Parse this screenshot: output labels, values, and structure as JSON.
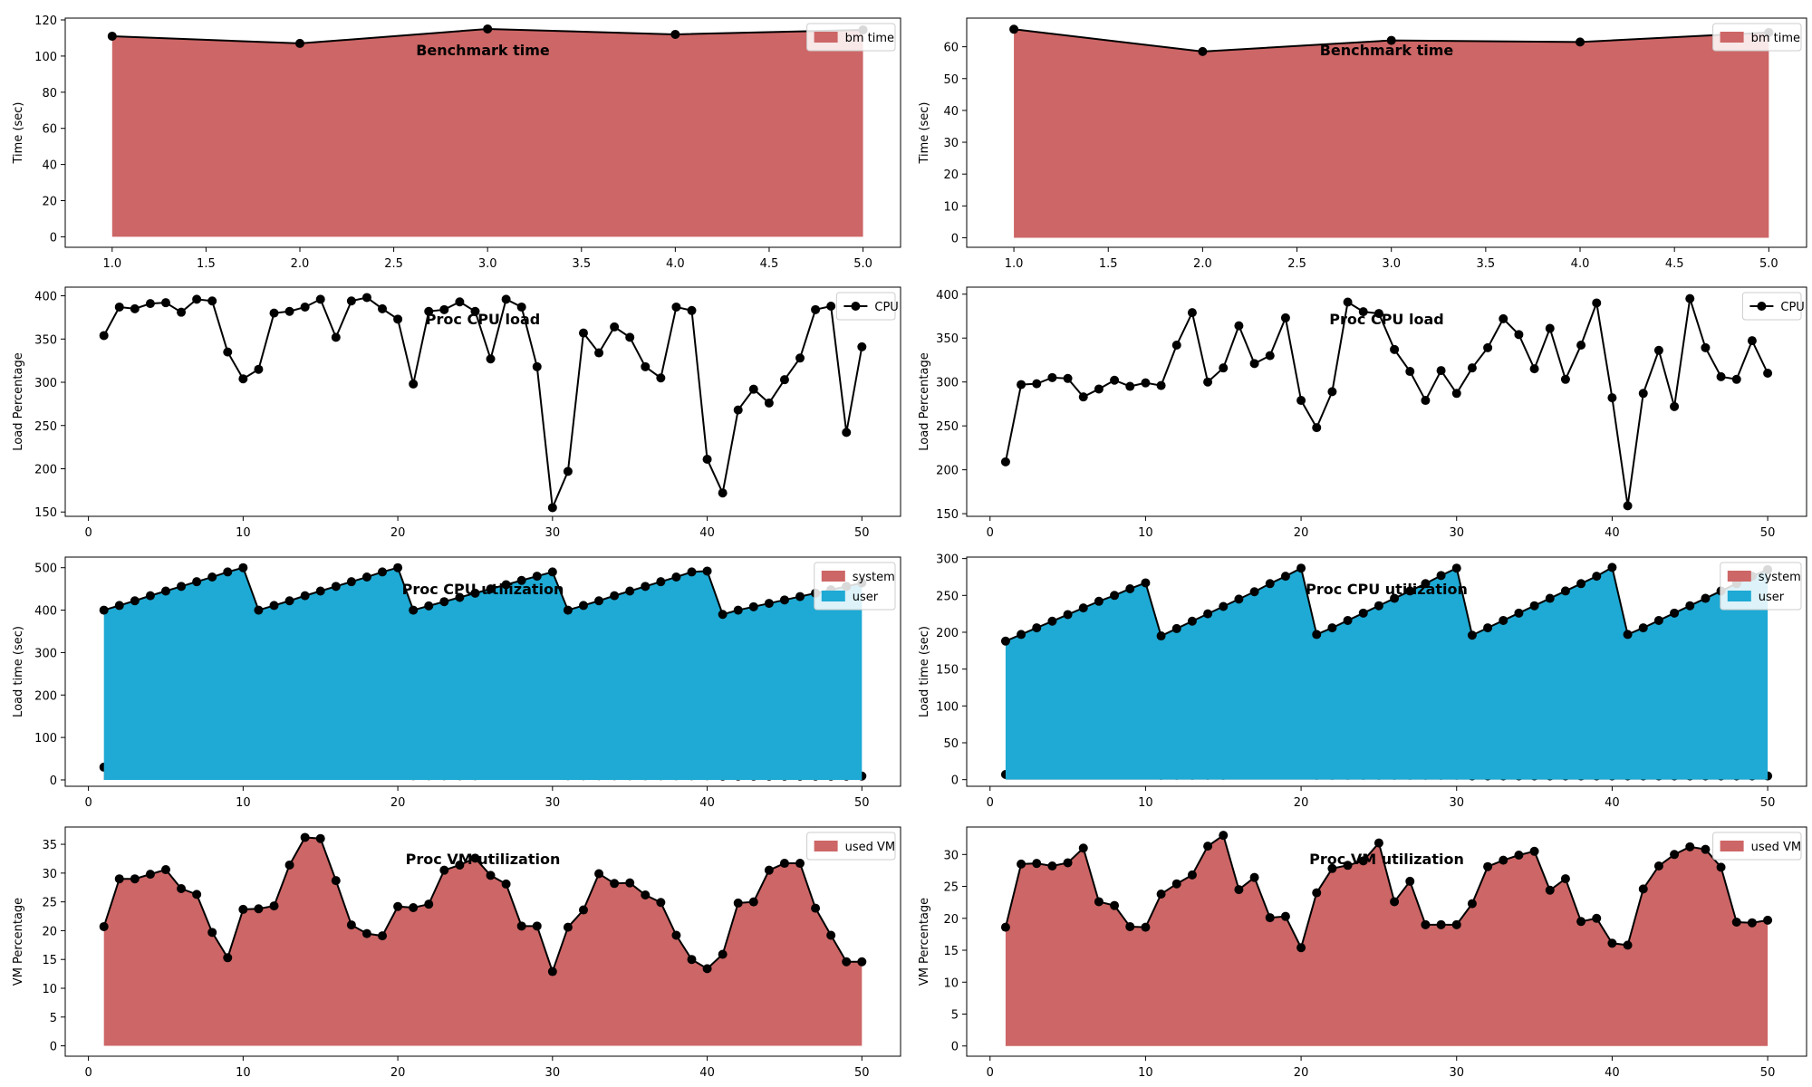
{
  "colors": {
    "area_red": "#cd6666",
    "area_blue": "#1eaad4",
    "line": "#000000",
    "axes": "#000000"
  },
  "chart_data": [
    {
      "type": "area",
      "title": "Benchmark time",
      "xlabel": "",
      "ylabel": "Time (sec)",
      "xlim": [
        0.75,
        5.2
      ],
      "ylim": [
        -5.8,
        121
      ],
      "xticks": [
        1.0,
        1.5,
        2.0,
        2.5,
        3.0,
        3.5,
        4.0,
        4.5,
        5.0
      ],
      "xticklabels": [
        "1.0",
        "1.5",
        "2.0",
        "2.5",
        "3.0",
        "3.5",
        "4.0",
        "4.5",
        "5.0"
      ],
      "yticks": [
        0,
        20,
        40,
        60,
        80,
        100,
        120
      ],
      "legend_position": "top-right",
      "grid": false,
      "x": [
        1,
        2,
        3,
        4,
        5
      ],
      "series": [
        {
          "name": "bm time",
          "style": "area",
          "color": "#cd6666",
          "values": [
            111,
            107,
            115,
            112,
            114.5
          ]
        }
      ]
    },
    {
      "type": "area",
      "title": "Benchmark time",
      "xlabel": "",
      "ylabel": "Time (sec)",
      "xlim": [
        0.75,
        5.2
      ],
      "ylim": [
        -3,
        69
      ],
      "xticks": [
        1.0,
        1.5,
        2.0,
        2.5,
        3.0,
        3.5,
        4.0,
        4.5,
        5.0
      ],
      "xticklabels": [
        "1.0",
        "1.5",
        "2.0",
        "2.5",
        "3.0",
        "3.5",
        "4.0",
        "4.5",
        "5.0"
      ],
      "yticks": [
        0,
        10,
        20,
        30,
        40,
        50,
        60
      ],
      "legend_position": "top-right",
      "grid": false,
      "x": [
        1,
        2,
        3,
        4,
        5
      ],
      "series": [
        {
          "name": "bm time",
          "style": "area",
          "color": "#cd6666",
          "values": [
            65.5,
            58.5,
            62,
            61.5,
            64.5
          ]
        }
      ]
    },
    {
      "type": "line",
      "title": "Proc CPU load",
      "xlabel": "",
      "ylabel": "Load Percentage",
      "xlim": [
        -1.5,
        52.5
      ],
      "ylim": [
        145,
        410
      ],
      "xticks": [
        0,
        10,
        20,
        30,
        40,
        50
      ],
      "xticklabels": [
        "0",
        "10",
        "20",
        "30",
        "40",
        "50"
      ],
      "yticks": [
        150,
        200,
        250,
        300,
        350,
        400
      ],
      "legend_position": "top-right",
      "grid": false,
      "x": [
        1,
        2,
        3,
        4,
        5,
        6,
        7,
        8,
        9,
        10,
        11,
        12,
        13,
        14,
        15,
        16,
        17,
        18,
        19,
        20,
        21,
        22,
        23,
        24,
        25,
        26,
        27,
        28,
        29,
        30,
        31,
        32,
        33,
        34,
        35,
        36,
        37,
        38,
        39,
        40,
        41,
        42,
        43,
        44,
        45,
        46,
        47,
        48,
        49,
        50
      ],
      "series": [
        {
          "name": "CPU",
          "style": "line",
          "color": "#000000",
          "values": [
            354,
            387,
            385,
            391,
            392,
            381,
            396,
            394,
            335,
            304,
            315,
            380,
            382,
            387,
            396,
            352,
            394,
            398,
            385,
            373,
            298,
            382,
            384,
            393,
            382,
            327,
            396,
            387,
            318,
            155,
            197,
            357,
            334,
            364,
            352,
            318,
            305,
            387,
            383,
            211,
            172,
            268,
            292,
            276,
            303,
            328,
            384,
            388,
            242,
            341
          ]
        }
      ]
    },
    {
      "type": "line",
      "title": "Proc CPU load",
      "xlabel": "",
      "ylabel": "Load Percentage",
      "xlim": [
        -1.5,
        52.5
      ],
      "ylim": [
        147,
        408
      ],
      "xticks": [
        0,
        10,
        20,
        30,
        40,
        50
      ],
      "xticklabels": [
        "0",
        "10",
        "20",
        "30",
        "40",
        "50"
      ],
      "yticks": [
        150,
        200,
        250,
        300,
        350,
        400
      ],
      "legend_position": "top-right",
      "grid": false,
      "x": [
        1,
        2,
        3,
        4,
        5,
        6,
        7,
        8,
        9,
        10,
        11,
        12,
        13,
        14,
        15,
        16,
        17,
        18,
        19,
        20,
        21,
        22,
        23,
        24,
        25,
        26,
        27,
        28,
        29,
        30,
        31,
        32,
        33,
        34,
        35,
        36,
        37,
        38,
        39,
        40,
        41,
        42,
        43,
        44,
        45,
        46,
        47,
        48,
        49,
        50
      ],
      "series": [
        {
          "name": "CPU",
          "style": "line",
          "color": "#000000",
          "values": [
            209,
            297,
            298,
            305,
            304,
            283,
            292,
            302,
            295,
            299,
            296,
            342,
            379,
            300,
            316,
            364,
            321,
            330,
            373,
            279,
            248,
            289,
            391,
            380,
            378,
            337,
            312,
            279,
            313,
            287,
            316,
            339,
            372,
            354,
            315,
            361,
            303,
            342,
            390,
            282,
            159,
            287,
            336,
            272,
            395,
            339,
            306,
            303,
            347,
            310
          ]
        }
      ]
    },
    {
      "type": "area",
      "title": "Proc CPU utilization",
      "xlabel": "",
      "ylabel": "Load time (sec)",
      "xlim": [
        -1.5,
        52.5
      ],
      "ylim": [
        -15,
        525
      ],
      "xticks": [
        0,
        10,
        20,
        30,
        40,
        50
      ],
      "xticklabels": [
        "0",
        "10",
        "20",
        "30",
        "40",
        "50"
      ],
      "yticks": [
        0,
        100,
        200,
        300,
        400,
        500
      ],
      "legend_position": "top-right",
      "grid": false,
      "x": [
        1,
        2,
        3,
        4,
        5,
        6,
        7,
        8,
        9,
        10,
        11,
        12,
        13,
        14,
        15,
        16,
        17,
        18,
        19,
        20,
        21,
        22,
        23,
        24,
        25,
        26,
        27,
        28,
        29,
        30,
        31,
        32,
        33,
        34,
        35,
        36,
        37,
        38,
        39,
        40,
        41,
        42,
        43,
        44,
        45,
        46,
        47,
        48,
        49,
        50
      ],
      "series": [
        {
          "name": "system",
          "style": "area",
          "color": "#cd6666",
          "values": [
            30,
            31,
            31,
            32,
            32,
            32,
            33,
            33,
            33,
            34,
            22,
            22,
            22,
            23,
            23,
            23,
            23,
            23,
            23,
            23,
            10,
            10,
            10,
            10,
            10,
            11,
            11,
            11,
            11,
            11,
            10,
            10,
            10,
            10,
            10,
            10,
            10,
            10,
            10,
            10,
            9,
            9,
            9,
            9,
            9,
            9,
            9,
            9,
            9,
            9
          ]
        },
        {
          "name": "user",
          "style": "area",
          "color": "#1eaad4",
          "values": [
            400,
            411,
            422,
            434,
            445,
            456,
            467,
            478,
            490,
            500,
            400,
            411,
            422,
            434,
            445,
            456,
            467,
            478,
            490,
            500,
            400,
            410,
            420,
            430,
            440,
            450,
            460,
            470,
            480,
            490,
            400,
            411,
            422,
            434,
            445,
            456,
            467,
            478,
            490,
            492,
            390,
            400,
            408,
            416,
            424,
            432,
            440,
            448,
            456,
            464
          ]
        }
      ]
    },
    {
      "type": "area",
      "title": "Proc CPU utilization",
      "xlabel": "",
      "ylabel": "Load time (sec)",
      "xlim": [
        -1.5,
        52.5
      ],
      "ylim": [
        -9,
        302
      ],
      "xticks": [
        0,
        10,
        20,
        30,
        40,
        50
      ],
      "xticklabels": [
        "0",
        "10",
        "20",
        "30",
        "40",
        "50"
      ],
      "yticks": [
        0,
        50,
        100,
        150,
        200,
        250,
        300
      ],
      "legend_position": "top-right",
      "grid": false,
      "x": [
        1,
        2,
        3,
        4,
        5,
        6,
        7,
        8,
        9,
        10,
        11,
        12,
        13,
        14,
        15,
        16,
        17,
        18,
        19,
        20,
        21,
        22,
        23,
        24,
        25,
        26,
        27,
        28,
        29,
        30,
        31,
        32,
        33,
        34,
        35,
        36,
        37,
        38,
        39,
        40,
        41,
        42,
        43,
        44,
        45,
        46,
        47,
        48,
        49,
        50
      ],
      "series": [
        {
          "name": "system",
          "style": "area",
          "color": "#cd6666",
          "values": [
            7,
            7,
            7,
            7,
            7,
            7,
            8,
            8,
            8,
            8,
            6,
            6,
            6,
            6,
            6,
            7,
            7,
            7,
            7,
            7,
            6,
            6,
            6,
            6,
            6,
            6,
            6,
            6,
            6,
            6,
            5,
            5,
            5,
            5,
            5,
            5,
            5,
            5,
            5,
            5,
            5,
            5,
            5,
            5,
            5,
            5,
            5,
            5,
            5,
            5
          ]
        },
        {
          "name": "user",
          "style": "area",
          "color": "#1eaad4",
          "values": [
            188,
            197,
            206,
            215,
            224,
            233,
            242,
            250,
            259,
            267,
            195,
            205,
            215,
            225,
            235,
            245,
            255,
            266,
            276,
            287,
            197,
            206,
            216,
            226,
            236,
            246,
            256,
            266,
            277,
            287,
            196,
            206,
            216,
            226,
            236,
            246,
            256,
            266,
            276,
            288,
            197,
            206,
            216,
            226,
            236,
            246,
            256,
            266,
            276,
            285
          ]
        }
      ]
    },
    {
      "type": "area",
      "title": "Proc VM utilization",
      "xlabel": "",
      "ylabel": "VM Percentage",
      "xlim": [
        -1.5,
        52.5
      ],
      "ylim": [
        -1.8,
        38
      ],
      "xticks": [
        0,
        10,
        20,
        30,
        40,
        50
      ],
      "xticklabels": [
        "0",
        "10",
        "20",
        "30",
        "40",
        "50"
      ],
      "yticks": [
        0,
        5,
        10,
        15,
        20,
        25,
        30,
        35
      ],
      "legend_position": "top-right",
      "grid": false,
      "x": [
        1,
        2,
        3,
        4,
        5,
        6,
        7,
        8,
        9,
        10,
        11,
        12,
        13,
        14,
        15,
        16,
        17,
        18,
        19,
        20,
        21,
        22,
        23,
        24,
        25,
        26,
        27,
        28,
        29,
        30,
        31,
        32,
        33,
        34,
        35,
        36,
        37,
        38,
        39,
        40,
        41,
        42,
        43,
        44,
        45,
        46,
        47,
        48,
        49,
        50
      ],
      "series": [
        {
          "name": "used VM",
          "style": "area",
          "color": "#cd6666",
          "values": [
            20.7,
            29.0,
            29.0,
            29.8,
            30.6,
            27.3,
            26.3,
            19.7,
            15.3,
            23.7,
            23.8,
            24.3,
            31.4,
            36.2,
            36.0,
            28.7,
            21.0,
            19.5,
            19.1,
            24.2,
            24.0,
            24.6,
            30.5,
            31.4,
            32.6,
            29.6,
            28.1,
            20.8,
            20.8,
            12.9,
            20.6,
            23.6,
            29.9,
            28.2,
            28.3,
            26.2,
            24.9,
            19.2,
            15.0,
            13.4,
            15.9,
            24.8,
            25.0,
            30.5,
            31.7,
            31.7,
            23.9,
            19.2,
            14.6,
            14.6
          ]
        }
      ]
    },
    {
      "type": "area",
      "title": "Proc VM utilization",
      "xlabel": "",
      "ylabel": "VM Percentage",
      "xlim": [
        -1.5,
        52.5
      ],
      "ylim": [
        -1.6,
        34.3
      ],
      "xticks": [
        0,
        10,
        20,
        30,
        40,
        50
      ],
      "xticklabels": [
        "0",
        "10",
        "20",
        "30",
        "40",
        "50"
      ],
      "yticks": [
        0,
        5,
        10,
        15,
        20,
        25,
        30
      ],
      "legend_position": "top-right",
      "grid": false,
      "x": [
        1,
        2,
        3,
        4,
        5,
        6,
        7,
        8,
        9,
        10,
        11,
        12,
        13,
        14,
        15,
        16,
        17,
        18,
        19,
        20,
        21,
        22,
        23,
        24,
        25,
        26,
        27,
        28,
        29,
        30,
        31,
        32,
        33,
        34,
        35,
        36,
        37,
        38,
        39,
        40,
        41,
        42,
        43,
        44,
        45,
        46,
        47,
        48,
        49,
        50
      ],
      "series": [
        {
          "name": "used VM",
          "style": "area",
          "color": "#cd6666",
          "values": [
            18.6,
            28.5,
            28.6,
            28.2,
            28.7,
            31.0,
            22.6,
            22.0,
            18.7,
            18.6,
            23.8,
            25.4,
            26.8,
            31.3,
            33.0,
            24.5,
            26.4,
            20.1,
            20.3,
            15.4,
            24.0,
            27.8,
            28.3,
            29.0,
            31.8,
            22.6,
            25.8,
            19.0,
            19.0,
            19.0,
            22.3,
            28.1,
            29.1,
            29.9,
            30.5,
            24.4,
            26.2,
            19.5,
            20.0,
            16.1,
            15.8,
            24.6,
            28.2,
            30.0,
            31.2,
            30.8,
            28.0,
            19.4,
            19.3,
            19.7
          ]
        }
      ]
    }
  ]
}
